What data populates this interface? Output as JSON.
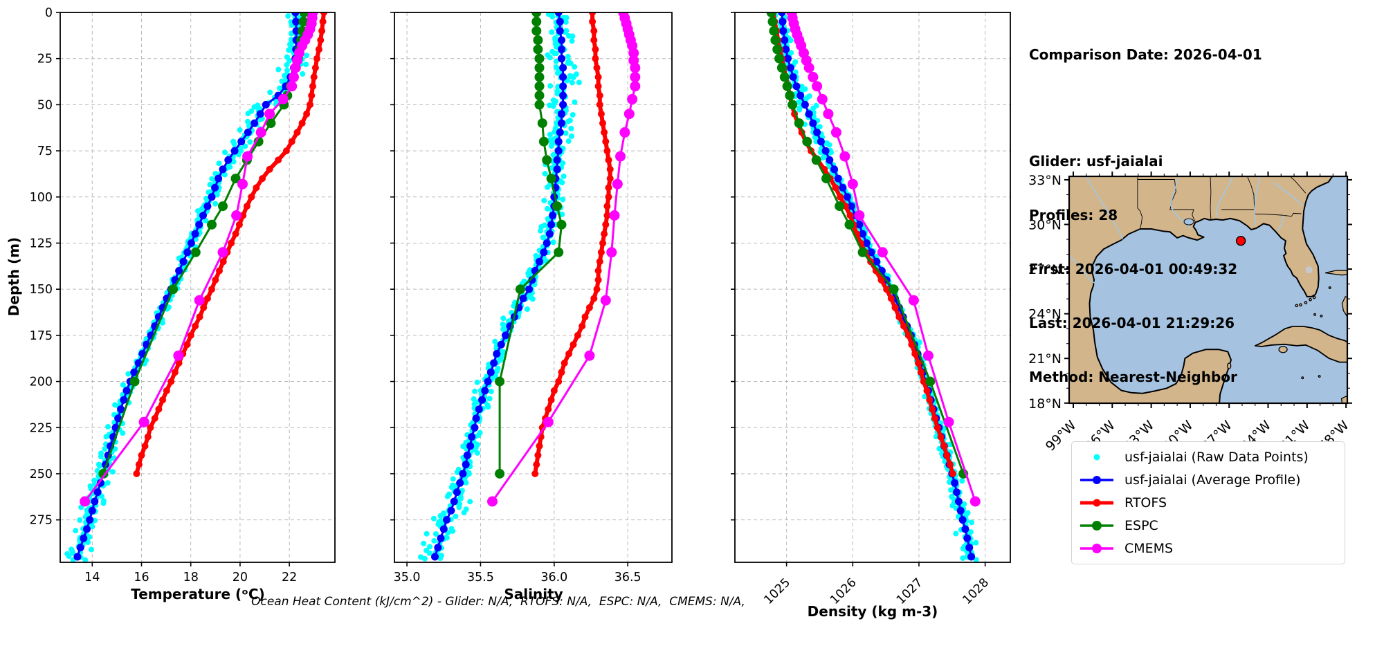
{
  "info_block": {
    "comparison_date": "Comparison Date: 2026-04-01",
    "lines": [
      "Glider: usf-jaialai",
      "Profiles: 28",
      "First: 2026-04-01 00:49:32",
      "Last: 2026-04-01 21:29:26",
      "Method: Nearest-Neighbor"
    ]
  },
  "footer_note": "Ocean Heat Content (kJ/cm^2) - Glider: N/A,  RTOFS: N/A,  ESPC: N/A,  CMEMS: N/A,",
  "chart_data": {
    "type": "line",
    "orientation": "depth-profile",
    "ylabel": "Depth (m)",
    "ylim": [
      0,
      298
    ],
    "yticks": [
      0,
      25,
      50,
      75,
      100,
      125,
      150,
      175,
      200,
      225,
      250,
      275
    ],
    "grid": true,
    "legend_position": "outside-lower-right",
    "panels": [
      {
        "id": "temperature",
        "xlabel": "Temperature (ᵒC)",
        "xlim": [
          12.7,
          23.85
        ],
        "xticks": [
          14,
          16,
          18,
          20,
          22
        ],
        "xtick_labels": [
          "14",
          "16",
          "18",
          "20",
          "22"
        ],
        "xtick_rotation": 0
      },
      {
        "id": "salinity",
        "xlabel": "Salinity",
        "xlim": [
          34.915,
          36.8
        ],
        "xticks": [
          35.0,
          35.5,
          36.0,
          36.5
        ],
        "xtick_labels": [
          "35.0",
          "35.5",
          "36.0",
          "36.5"
        ],
        "xtick_rotation": 0
      },
      {
        "id": "density",
        "xlabel": "Density (kg m-3)",
        "xlim": [
          1024.22,
          1028.38
        ],
        "xticks": [
          1025,
          1026,
          1027,
          1028
        ],
        "xtick_labels": [
          "1025",
          "1026",
          "1027",
          "1028"
        ],
        "xtick_rotation": 45
      }
    ],
    "series": [
      {
        "id": "raw",
        "name": "usf-jaialai (Raw Data Points)",
        "color": "#00ffff",
        "style": "scatter",
        "marker_radius": 4,
        "jitter": {
          "seed": 20260401,
          "step_m": 1.35,
          "points_per_step": 2,
          "depth_range": [
            0,
            297
          ],
          "sd": {
            "temperature": 0.13,
            "salinity": 0.028,
            "density": 0.038
          }
        }
      },
      {
        "id": "average",
        "name": "usf-jaialai (Average Profile)",
        "color": "#0000ff",
        "style": "line-marker",
        "line_width": 3,
        "marker_radius": 5.5,
        "depths": [
          0,
          5,
          10,
          15,
          20,
          25,
          30,
          35,
          40,
          45,
          50,
          55,
          60,
          65,
          70,
          75,
          80,
          85,
          90,
          95,
          100,
          105,
          110,
          115,
          120,
          125,
          130,
          135,
          140,
          145,
          150,
          155,
          160,
          165,
          170,
          175,
          180,
          185,
          190,
          195,
          200,
          205,
          210,
          215,
          220,
          225,
          230,
          235,
          240,
          245,
          250,
          255,
          260,
          265,
          270,
          275,
          280,
          285,
          290,
          295
        ],
        "temperature": [
          22.25,
          22.27,
          22.28,
          22.28,
          22.27,
          22.24,
          22.18,
          22.05,
          21.85,
          21.55,
          21.05,
          20.82,
          20.58,
          20.32,
          20.05,
          19.78,
          19.52,
          19.3,
          19.12,
          18.98,
          18.85,
          18.68,
          18.5,
          18.34,
          18.18,
          18.02,
          17.86,
          17.7,
          17.52,
          17.36,
          17.2,
          17.02,
          16.86,
          16.7,
          16.54,
          16.38,
          16.2,
          16.04,
          15.88,
          15.7,
          15.54,
          15.4,
          15.28,
          15.16,
          15.05,
          14.95,
          14.85,
          14.74,
          14.64,
          14.54,
          14.45,
          14.34,
          14.22,
          14.1,
          14.0,
          13.9,
          13.78,
          13.65,
          13.52,
          13.4
        ],
        "salinity": [
          36.03,
          36.04,
          36.04,
          36.05,
          36.05,
          36.05,
          36.06,
          36.06,
          36.06,
          36.06,
          36.06,
          36.05,
          36.05,
          36.04,
          36.03,
          36.03,
          36.02,
          36.02,
          36.01,
          36.01,
          36.0,
          36.0,
          35.99,
          35.98,
          35.97,
          35.95,
          35.93,
          35.9,
          35.87,
          35.85,
          35.83,
          35.79,
          35.76,
          35.73,
          35.7,
          35.67,
          35.64,
          35.61,
          35.59,
          35.57,
          35.55,
          35.53,
          35.51,
          35.49,
          35.47,
          35.46,
          35.44,
          35.43,
          35.41,
          35.4,
          35.38,
          35.36,
          35.34,
          35.32,
          35.3,
          35.27,
          35.25,
          35.23,
          35.21,
          35.19
        ],
        "density": [
          1024.93,
          1024.94,
          1024.95,
          1024.97,
          1024.99,
          1025.02,
          1025.06,
          1025.1,
          1025.15,
          1025.21,
          1025.28,
          1025.34,
          1025.4,
          1025.46,
          1025.52,
          1025.59,
          1025.65,
          1025.72,
          1025.78,
          1025.85,
          1025.92,
          1025.98,
          1026.04,
          1026.1,
          1026.15,
          1026.21,
          1026.28,
          1026.36,
          1026.44,
          1026.51,
          1026.58,
          1026.64,
          1026.7,
          1026.76,
          1026.82,
          1026.88,
          1026.93,
          1026.98,
          1027.02,
          1027.06,
          1027.1,
          1027.14,
          1027.18,
          1027.22,
          1027.26,
          1027.3,
          1027.34,
          1027.38,
          1027.42,
          1027.46,
          1027.5,
          1027.54,
          1027.57,
          1027.6,
          1027.63,
          1027.66,
          1027.7,
          1027.73,
          1027.76,
          1027.79
        ]
      },
      {
        "id": "rtofs",
        "name": "RTOFS",
        "color": "#ff0000",
        "style": "line-marker",
        "line_width": 6,
        "marker_radius": 5,
        "depths": [
          0,
          5,
          10,
          15,
          20,
          25,
          30,
          35,
          40,
          45,
          50,
          55,
          60,
          65,
          70,
          75,
          80,
          85,
          90,
          95,
          100,
          105,
          110,
          115,
          120,
          125,
          130,
          135,
          140,
          145,
          150,
          155,
          160,
          165,
          170,
          175,
          180,
          185,
          190,
          195,
          200,
          205,
          210,
          215,
          220,
          225,
          230,
          235,
          240,
          245,
          250
        ],
        "temperature": [
          23.4,
          23.36,
          23.32,
          23.27,
          23.2,
          23.12,
          23.06,
          23.0,
          22.95,
          22.9,
          22.84,
          22.7,
          22.52,
          22.32,
          22.1,
          21.88,
          21.55,
          21.2,
          20.9,
          20.66,
          20.46,
          20.28,
          20.12,
          19.97,
          19.82,
          19.64,
          19.48,
          19.32,
          19.16,
          19.0,
          18.85,
          18.68,
          18.52,
          18.36,
          18.18,
          18.0,
          17.85,
          17.68,
          17.52,
          17.36,
          17.2,
          17.02,
          16.86,
          16.7,
          16.54,
          16.36,
          16.26,
          16.14,
          16.0,
          15.9,
          15.8
        ],
        "salinity": [
          36.26,
          36.26,
          36.27,
          36.27,
          36.28,
          36.28,
          36.29,
          36.3,
          36.3,
          36.31,
          36.31,
          36.32,
          36.33,
          36.34,
          36.35,
          36.36,
          36.37,
          36.38,
          36.38,
          36.37,
          36.37,
          36.36,
          36.36,
          36.35,
          36.34,
          36.33,
          36.32,
          36.31,
          36.3,
          36.3,
          36.29,
          36.27,
          36.24,
          36.21,
          36.19,
          36.16,
          36.13,
          36.1,
          36.07,
          36.05,
          36.03,
          36.0,
          35.98,
          35.96,
          35.94,
          35.92,
          35.91,
          35.9,
          35.89,
          35.88,
          35.87
        ],
        "density": [
          1024.8,
          1024.82,
          1024.85,
          1024.87,
          1024.9,
          1024.93,
          1024.96,
          1024.99,
          1025.02,
          1025.05,
          1025.08,
          1025.12,
          1025.17,
          1025.23,
          1025.29,
          1025.37,
          1025.47,
          1025.57,
          1025.66,
          1025.74,
          1025.81,
          1025.89,
          1025.96,
          1026.01,
          1026.06,
          1026.12,
          1026.19,
          1026.27,
          1026.35,
          1026.43,
          1026.51,
          1026.58,
          1026.64,
          1026.7,
          1026.77,
          1026.84,
          1026.89,
          1026.94,
          1026.99,
          1027.03,
          1027.07,
          1027.12,
          1027.16,
          1027.2,
          1027.24,
          1027.28,
          1027.33,
          1027.38,
          1027.42,
          1027.47,
          1027.51
        ]
      },
      {
        "id": "espc",
        "name": "ESPC",
        "color": "#008000",
        "style": "line-marker",
        "line_width": 3,
        "marker_radius": 7,
        "depths": [
          0,
          5,
          10,
          15,
          20,
          25,
          30,
          35,
          40,
          45,
          50,
          60,
          70,
          80,
          90,
          105,
          115,
          130,
          150,
          200,
          250
        ],
        "temperature": [
          22.6,
          22.57,
          22.53,
          22.48,
          22.42,
          22.35,
          22.27,
          22.17,
          22.05,
          21.92,
          21.78,
          21.25,
          20.75,
          20.28,
          19.82,
          19.3,
          18.85,
          18.2,
          17.28,
          15.72,
          14.45
        ],
        "salinity": [
          35.88,
          35.88,
          35.88,
          35.89,
          35.89,
          35.9,
          35.9,
          35.9,
          35.9,
          35.9,
          35.9,
          35.92,
          35.93,
          35.95,
          35.98,
          36.02,
          36.05,
          36.03,
          35.77,
          35.63,
          35.63
        ],
        "density": [
          1024.77,
          1024.79,
          1024.81,
          1024.83,
          1024.86,
          1024.89,
          1024.93,
          1024.97,
          1025.01,
          1025.05,
          1025.09,
          1025.19,
          1025.31,
          1025.45,
          1025.6,
          1025.8,
          1025.95,
          1026.15,
          1026.62,
          1027.17,
          1027.67
        ]
      },
      {
        "id": "cmems",
        "name": "CMEMS",
        "color": "#ff00ff",
        "style": "line-marker",
        "line_width": 3,
        "marker_radius": 7.5,
        "depths": [
          0,
          3,
          6,
          9,
          12,
          15,
          18,
          22,
          26,
          30,
          35,
          40,
          47,
          55,
          65,
          78,
          93,
          110,
          130,
          156,
          186,
          222,
          265
        ],
        "temperature": [
          22.95,
          22.93,
          22.9,
          22.84,
          22.75,
          22.64,
          22.52,
          22.4,
          22.32,
          22.25,
          22.18,
          22.1,
          21.75,
          21.2,
          20.85,
          20.3,
          20.1,
          19.85,
          19.3,
          18.35,
          17.5,
          16.1,
          13.7
        ],
        "salinity": [
          36.47,
          36.48,
          36.49,
          36.5,
          36.51,
          36.52,
          36.53,
          36.54,
          36.54,
          36.55,
          36.55,
          36.55,
          36.53,
          36.51,
          36.48,
          36.45,
          36.43,
          36.41,
          36.39,
          36.35,
          36.24,
          35.96,
          35.58
        ],
        "density": [
          1025.08,
          1025.09,
          1025.11,
          1025.13,
          1025.16,
          1025.19,
          1025.22,
          1025.26,
          1025.3,
          1025.34,
          1025.4,
          1025.46,
          1025.54,
          1025.63,
          1025.75,
          1025.88,
          1026.0,
          1026.1,
          1026.45,
          1026.92,
          1027.14,
          1027.45,
          1027.85
        ]
      }
    ]
  },
  "map": {
    "region": "Gulf of Mexico",
    "lat_ticks": [
      33,
      30,
      27,
      24,
      21,
      18
    ],
    "lat_labels": [
      "33°N",
      "30°N",
      "27°N",
      "24°N",
      "21°N",
      "18°N"
    ],
    "lon_ticks": [
      -99,
      -96,
      -93,
      -90,
      -87,
      -84,
      -81,
      -78
    ],
    "lon_labels": [
      "99°W",
      "96°W",
      "93°W",
      "90°W",
      "87°W",
      "84°W",
      "81°W",
      "78°W"
    ],
    "extent": {
      "lon": [
        -99.32,
        -77.9
      ],
      "lat": [
        17.99,
        33.23
      ]
    },
    "glider_position": {
      "lon": -86.1,
      "lat": 28.9
    },
    "colors": {
      "land": "#d3b58c",
      "ocean": "#a5c3e1",
      "river": "#9ec9e8",
      "lake": "#c4c9ce",
      "marker": "#ff0000"
    }
  }
}
